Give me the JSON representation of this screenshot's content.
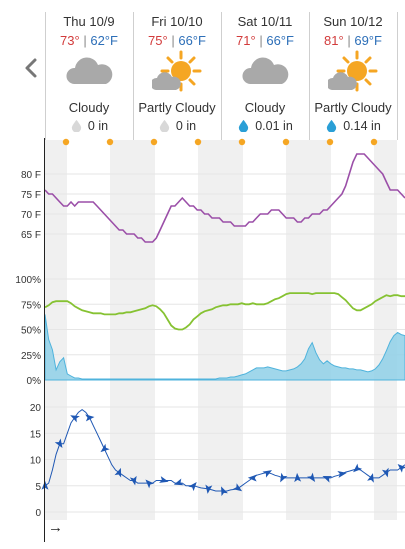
{
  "days": [
    {
      "name": "Thu 10/9",
      "hi": "73°",
      "lo": "62°F",
      "condition": "Cloudy",
      "icon": "cloudy-icon",
      "precip": "0 in",
      "drop": "grey"
    },
    {
      "name": "Fri 10/10",
      "hi": "75°",
      "lo": "66°F",
      "condition": "Partly Cloudy",
      "icon": "partly-cloudy-icon",
      "precip": "0 in",
      "drop": "grey"
    },
    {
      "name": "Sat 10/11",
      "hi": "71°",
      "lo": "66°F",
      "condition": "Cloudy",
      "icon": "cloudy-icon",
      "precip": "0.01 in",
      "drop": "blue"
    },
    {
      "name": "Sun 10/12",
      "hi": "81°",
      "lo": "69°F",
      "condition": "Partly Cloudy",
      "icon": "partly-cloudy-icon",
      "precip": "0.14 in",
      "drop": "blue"
    }
  ],
  "separator": "|",
  "colors": {
    "hi": "#d23b3b",
    "lo": "#2d6fb8",
    "temp_line": "#9b4fa8",
    "humidity_line": "#86c232",
    "precip_fill": "#8fd0e8",
    "wind": "#1f58b4",
    "sun": "#f5a623",
    "cloud": "#a9a9a9",
    "shade": "#f0f0f0"
  },
  "chart_data": [
    {
      "type": "line",
      "ylim": [
        62,
        86
      ],
      "ticks": [
        "80 F",
        "75 F",
        "70 F",
        "65 F"
      ],
      "tick_values": [
        80,
        75,
        70,
        65
      ],
      "series": [
        {
          "values": [
            76,
            75,
            75,
            74,
            73,
            72,
            72,
            73,
            72,
            73,
            73,
            73,
            73,
            73,
            72,
            71,
            70,
            69,
            68,
            67,
            66,
            66,
            65,
            65,
            65,
            64,
            64,
            63,
            63,
            63,
            64,
            66,
            68,
            70,
            72,
            72,
            73,
            74,
            73,
            72,
            72,
            71,
            71,
            70,
            70,
            69,
            69,
            69,
            68,
            68,
            68,
            67,
            67,
            67,
            67,
            68,
            68,
            69,
            70,
            70,
            70,
            71,
            71,
            71,
            70,
            69,
            69,
            69,
            68,
            68,
            69,
            69,
            70,
            70,
            70,
            71,
            71,
            72,
            73,
            74,
            75,
            77,
            80,
            83,
            85,
            85,
            85,
            84,
            83,
            82,
            81,
            80,
            78,
            76,
            76,
            76,
            75,
            74
          ]
        }
      ]
    },
    {
      "type": "area",
      "ylim": [
        0,
        100
      ],
      "ticks": [
        "100%",
        "75%",
        "50%",
        "25%",
        "0%"
      ],
      "tick_values": [
        100,
        75,
        50,
        25,
        0
      ],
      "series": [
        {
          "values": [
            72,
            74,
            77,
            78,
            78,
            78,
            78,
            76,
            73,
            71,
            69,
            68,
            67,
            66,
            66,
            66,
            65,
            65,
            65,
            65,
            66,
            66,
            67,
            67,
            68,
            69,
            70,
            71,
            73,
            74,
            73,
            70,
            66,
            60,
            54,
            51,
            50,
            50,
            52,
            55,
            60,
            63,
            66,
            68,
            69,
            70,
            72,
            73,
            74,
            74,
            75,
            75,
            75,
            76,
            75,
            75,
            76,
            75,
            75,
            75,
            76,
            78,
            80,
            81,
            83,
            85,
            86,
            86,
            86,
            86,
            86,
            86,
            85,
            86,
            86,
            86,
            86,
            86,
            86,
            85,
            82,
            79,
            75,
            71,
            69,
            69,
            71,
            73,
            75,
            78,
            80,
            82,
            84,
            83,
            84,
            84,
            83,
            83
          ]
        },
        {
          "values": [
            65,
            40,
            30,
            10,
            18,
            22,
            6,
            4,
            2,
            2,
            1,
            1,
            1,
            1,
            1,
            1,
            1,
            1,
            1,
            1,
            1,
            1,
            1,
            1,
            1,
            1,
            1,
            1,
            1,
            1,
            1,
            1,
            1,
            1,
            1,
            1,
            1,
            1,
            1,
            1,
            1,
            1,
            1,
            1,
            1,
            1,
            1,
            2,
            2,
            2,
            3,
            3,
            4,
            5,
            6,
            8,
            10,
            12,
            12,
            12,
            13,
            12,
            11,
            10,
            9,
            9,
            10,
            11,
            13,
            16,
            21,
            31,
            37,
            27,
            20,
            16,
            19,
            16,
            14,
            13,
            12,
            12,
            11,
            11,
            10,
            10,
            9,
            8,
            9,
            11,
            15,
            21,
            29,
            38,
            44,
            47,
            45,
            44
          ]
        }
      ]
    },
    {
      "type": "line",
      "ylim": [
        0,
        20
      ],
      "ticks": [
        "20",
        "15",
        "10",
        "5",
        "0"
      ],
      "tick_values": [
        20,
        15,
        10,
        5,
        0
      ],
      "series": [
        {
          "values": [
            5,
            5.5,
            8,
            11,
            13,
            13,
            15,
            17,
            18,
            19,
            19.5,
            19,
            18,
            16.5,
            15,
            13.5,
            12,
            10.5,
            9,
            8,
            7.5,
            7,
            6.5,
            6,
            6,
            5.5,
            5.5,
            5.5,
            5.5,
            5.5,
            6,
            6,
            6,
            6,
            6,
            5.5,
            5.5,
            5.5,
            5,
            5,
            5,
            4.8,
            4.6,
            4.5,
            4.4,
            4.2,
            4,
            4,
            4,
            4,
            4.2,
            4.3,
            4.5,
            5,
            5.5,
            6,
            6.5,
            7,
            7.2,
            7.4,
            7.5,
            7.3,
            7,
            6.8,
            6.5,
            6.5,
            6.5,
            6.5,
            6.5,
            6.5,
            6.5,
            6.5,
            6.5,
            6.5,
            6.5,
            6.5,
            6.5,
            6.5,
            6.8,
            7,
            7.3,
            7.6,
            7.8,
            8,
            8.2,
            8,
            7.5,
            7,
            6.5,
            6.5,
            6.5,
            7,
            7.5,
            8,
            8,
            8,
            8.5,
            9
          ]
        }
      ]
    }
  ]
}
